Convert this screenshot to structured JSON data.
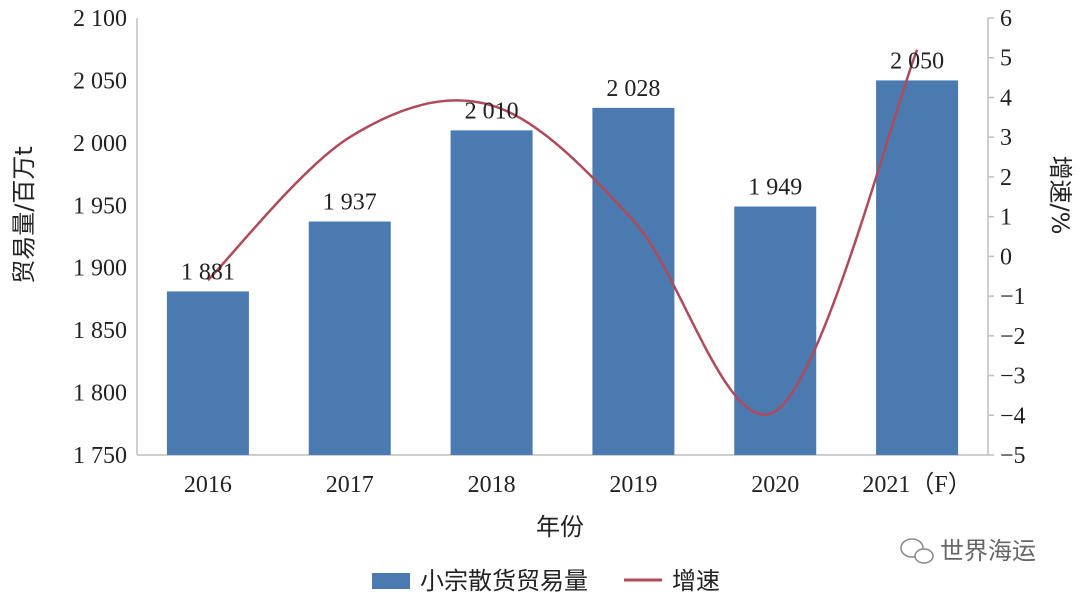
{
  "chart_data": {
    "type": "bar+line",
    "title": "",
    "categories": [
      "2016",
      "2017",
      "2018",
      "2019",
      "2020",
      "2021（F）"
    ],
    "series": [
      {
        "name": "小宗散货贸易量",
        "type": "bar",
        "axis": "left",
        "color": "#4a7ab0",
        "values": [
          1881,
          1937,
          2010,
          2028,
          1949,
          2050
        ],
        "labels": [
          "1 881",
          "1 937",
          "2 010",
          "2 028",
          "1 949",
          "2 050"
        ]
      },
      {
        "name": "增速",
        "type": "line",
        "axis": "right",
        "color": "#b04a5a",
        "values": [
          -0.6,
          3.0,
          3.8,
          0.9,
          -3.9,
          5.2
        ]
      }
    ],
    "xlabel": "年份",
    "ylabel": "贸易量/百万t",
    "y2label": "增速/%",
    "ylim": [
      1750,
      2100
    ],
    "y2lim": [
      -5,
      6
    ],
    "yticks": [
      "1 750",
      "1 800",
      "1 850",
      "1 900",
      "1 950",
      "2 000",
      "2 050",
      "2 100"
    ],
    "y2ticks": [
      "−5",
      "−4",
      "−3",
      "−2",
      "−1",
      "0",
      "1",
      "2",
      "3",
      "4",
      "5",
      "6"
    ],
    "grid": false,
    "legend_position": "bottom"
  },
  "legend": {
    "bar_label": "小宗散货贸易量",
    "line_label": "增速"
  },
  "watermark": {
    "text": "世界海运"
  }
}
